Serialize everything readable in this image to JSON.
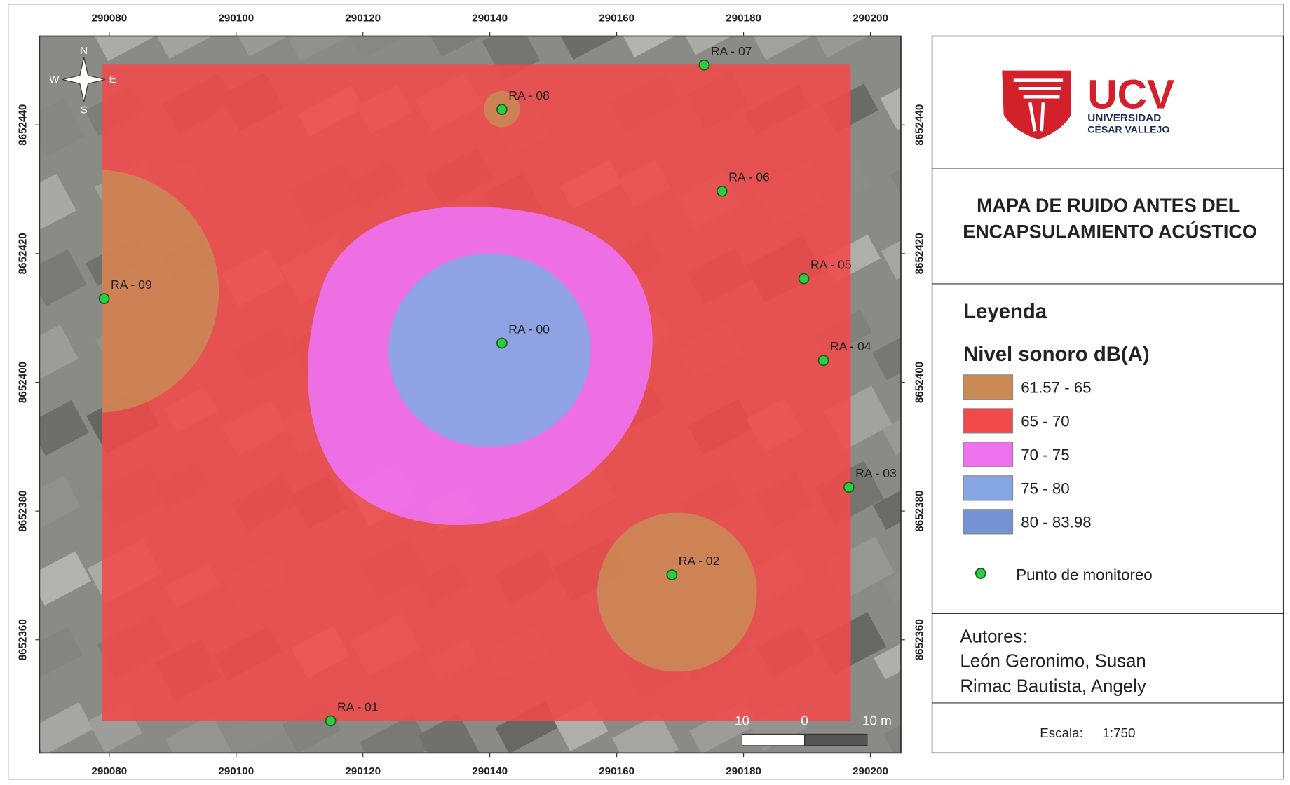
{
  "map": {
    "xlim": [
      290069,
      290204.8
    ],
    "ylim": [
      8652342.4,
      8652453.8
    ],
    "xticks": [
      290080,
      290100,
      290120,
      290140,
      290160,
      290180,
      290200
    ],
    "yticks": [
      8652360,
      8652380,
      8652400,
      8652420,
      8652440
    ],
    "compass": {
      "n": "N",
      "s": "S",
      "e": "E",
      "w": "W"
    },
    "point_color": "#2ecc40",
    "points": [
      {
        "label": "RA - 00",
        "x": 290141.9,
        "y": 8652406.1
      },
      {
        "label": "RA - 01",
        "x": 290114.9,
        "y": 8652347.4
      },
      {
        "label": "RA - 02",
        "x": 290168.7,
        "y": 8652370.1
      },
      {
        "label": "RA - 03",
        "x": 290196.6,
        "y": 8652383.7
      },
      {
        "label": "RA - 04",
        "x": 290192.6,
        "y": 8652403.4
      },
      {
        "label": "RA - 05",
        "x": 290189.5,
        "y": 8652416.1
      },
      {
        "label": "RA - 06",
        "x": 290176.6,
        "y": 8652429.7
      },
      {
        "label": "RA - 07",
        "x": 290173.8,
        "y": 8652449.3
      },
      {
        "label": "RA - 08",
        "x": 290141.9,
        "y": 8652442.4
      },
      {
        "label": "RA - 09",
        "x": 290079.2,
        "y": 8652413.0
      }
    ],
    "scale_bar": {
      "labels": [
        "10",
        "0",
        "10 m"
      ]
    }
  },
  "panel": {
    "logo": {
      "name": "UCV",
      "line1": "UNIVERSIDAD",
      "line2": "CÉSAR VALLEJO"
    },
    "title": [
      "MAPA DE RUIDO ANTES DEL",
      "ENCAPSULAMIENTO ACÚSTICO"
    ],
    "legend": {
      "heading": "Leyenda",
      "subheading": "Nivel sonoro dB(A)",
      "items": [
        {
          "label": "61.57 - 65",
          "color": "#c98a55"
        },
        {
          "label": "65 - 70",
          "color": "#f24a4a"
        },
        {
          "label": "70 - 75",
          "color": "#ee72f0"
        },
        {
          "label": "75 - 80",
          "color": "#86a6e4"
        },
        {
          "label": "80 - 83.98",
          "color": "#7592d2"
        }
      ],
      "point_label": "Punto de monitoreo"
    },
    "authors": {
      "heading": "Autores:",
      "names": [
        "León Geronimo, Susan",
        "Rimac Bautista, Angely"
      ]
    },
    "scale": {
      "label": "Escala:",
      "value": "1:750"
    }
  }
}
